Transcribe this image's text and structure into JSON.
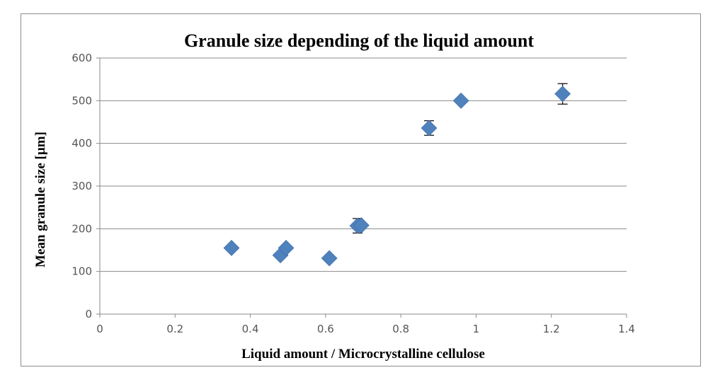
{
  "chart_data": {
    "type": "scatter",
    "title": "Granule size  depending of the liquid  amount",
    "xlabel": "Liquid  amount / Microcrystalline cellulose",
    "ylabel": "Mean granule size  [µm]",
    "xlim": [
      0,
      1.4
    ],
    "ylim": [
      0,
      600
    ],
    "xticks": [
      "0",
      "0.2",
      "0.4",
      "0.6",
      "0.8",
      "1",
      "1.2",
      "1.4"
    ],
    "yticks": [
      "0",
      "100",
      "200",
      "300",
      "400",
      "500",
      "600"
    ],
    "grid": "horizontal",
    "legend": "none",
    "marker": "diamond",
    "color": "#4f81bd",
    "points": [
      {
        "x": 0.35,
        "y": 155,
        "err": 0
      },
      {
        "x": 0.48,
        "y": 138,
        "err": 0
      },
      {
        "x": 0.495,
        "y": 155,
        "err": 0
      },
      {
        "x": 0.61,
        "y": 131,
        "err": 0
      },
      {
        "x": 0.685,
        "y": 207,
        "err": 17
      },
      {
        "x": 0.695,
        "y": 208,
        "err": 0
      },
      {
        "x": 0.875,
        "y": 436,
        "err": 17
      },
      {
        "x": 0.96,
        "y": 500,
        "err": 0
      },
      {
        "x": 1.23,
        "y": 516,
        "err": 24
      }
    ]
  }
}
